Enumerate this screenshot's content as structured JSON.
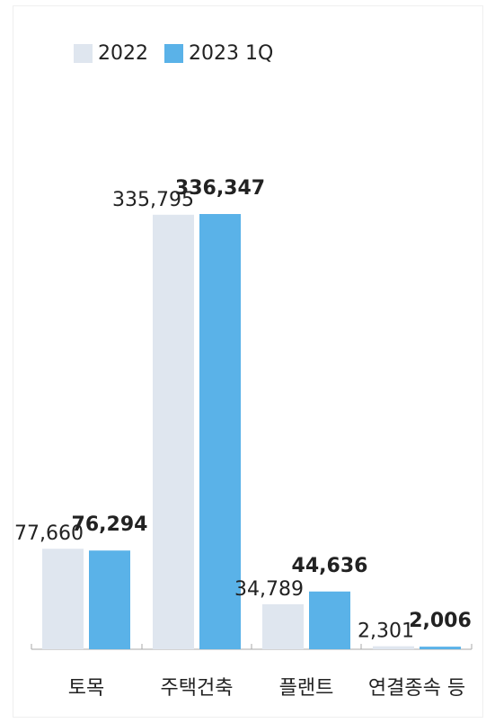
{
  "chart_data": {
    "type": "bar",
    "categories": [
      "토목",
      "주택건축",
      "플랜트",
      "연결종속 등"
    ],
    "series": [
      {
        "name": "2022",
        "values": [
          77660,
          335795,
          34789,
          2301
        ],
        "labels": [
          "77,660",
          "335,795",
          "34,789",
          "2,301"
        ],
        "color": "#dfe6ef"
      },
      {
        "name": "2023 1Q",
        "values": [
          76294,
          336347,
          44636,
          2006
        ],
        "labels": [
          "76,294",
          "336,347",
          "44,636",
          "2,006"
        ],
        "color": "#5ab2e8"
      }
    ],
    "title": "",
    "xlabel": "",
    "ylabel": "",
    "ylim": [
      0,
      336347
    ],
    "legend": "top-left",
    "grid": false
  }
}
